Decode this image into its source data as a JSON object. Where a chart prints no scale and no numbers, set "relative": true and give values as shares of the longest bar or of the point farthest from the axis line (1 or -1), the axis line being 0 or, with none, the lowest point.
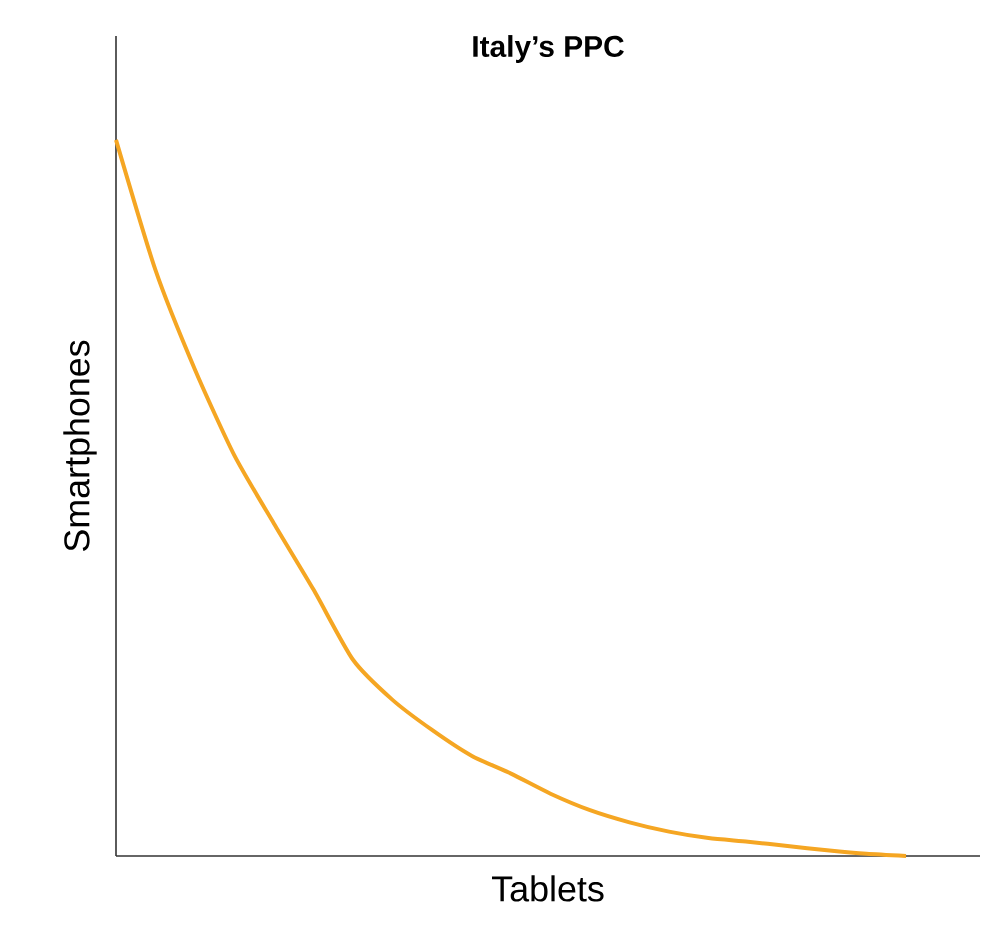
{
  "chart_data": {
    "type": "line",
    "title": "Italy’s PPC",
    "xlabel": "Tablets",
    "ylabel": "Smartphones",
    "relative": true,
    "color": "#f5a623",
    "marker": "none",
    "line_style": "solid",
    "categories": [
      null,
      null,
      null,
      null,
      null,
      null,
      null,
      null,
      null,
      null,
      null,
      null,
      null,
      null,
      null,
      null,
      null,
      null,
      null,
      null,
      null
    ],
    "values": [
      1,
      0.818,
      0.679,
      0.559,
      0.464,
      0.372,
      0.274,
      0.218,
      0.176,
      0.14,
      0.115,
      0.087,
      0.064,
      0.047,
      0.034,
      0.025,
      0.02,
      0.014,
      0.008,
      0.003,
      0
    ]
  }
}
